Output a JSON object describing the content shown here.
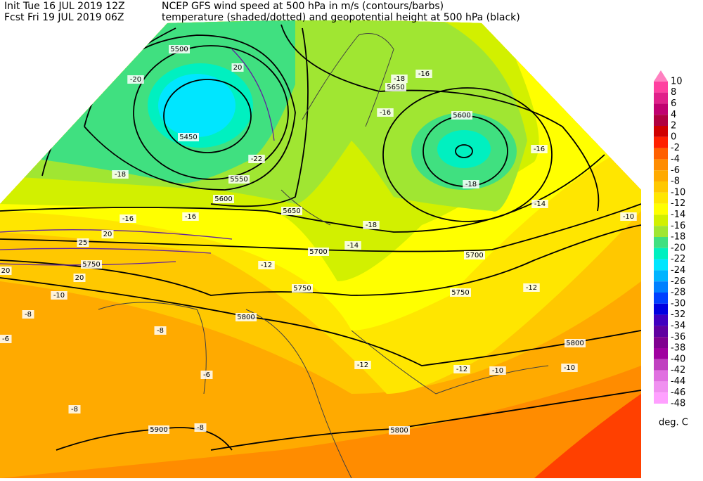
{
  "header": {
    "init": "Init  Tue 16 JUL 2019 12Z",
    "fcst": "Fcst Fri 19 JUL 2019 06Z",
    "title1": "NCEP GFS wind speed at 500 hPa in m/s (contours/barbs)",
    "title2": "temperature (shaded/dotted) and geopotential height at 500 hPa (black)"
  },
  "legend": {
    "levels": [
      10,
      8,
      6,
      4,
      2,
      0,
      -2,
      -4,
      -6,
      -8,
      -10,
      -12,
      -14,
      -16,
      -18,
      -20,
      -22,
      -24,
      -26,
      -28,
      -30,
      -32,
      -34,
      -36,
      -38,
      -40,
      -42,
      -44,
      -46,
      -48
    ],
    "colors": [
      "#ff80c0",
      "#ff40a0",
      "#e0208a",
      "#c00070",
      "#b00040",
      "#d00000",
      "#ff2000",
      "#ff6000",
      "#ff8c00",
      "#ffaa00",
      "#ffc800",
      "#ffe600",
      "#ffff00",
      "#d2f000",
      "#a0e632",
      "#40e080",
      "#00f0c0",
      "#00e6ff",
      "#00b4ff",
      "#0080ff",
      "#0040ff",
      "#0000e0",
      "#4000c0",
      "#6000a0",
      "#800090",
      "#a000a0",
      "#c040c0",
      "#e070e0",
      "#f090f0",
      "#ffa0ff"
    ],
    "unit": "deg. C"
  },
  "map_labels": [
    "5500",
    "5450",
    "5550",
    "5600",
    "5650",
    "5700",
    "5750",
    "5750",
    "5800",
    "5800",
    "5800",
    "5900",
    "5650",
    "5600",
    "5700",
    "5750",
    "-20",
    "-18",
    "-16",
    "-18",
    "-16",
    "-18",
    "-16",
    "-16",
    "-14",
    "-12",
    "-10",
    "-10",
    "-8",
    "-6",
    "-8",
    "-6",
    "-8",
    "-8",
    "-12",
    "-12",
    "-10",
    "-12",
    "-14",
    "-16",
    "-22",
    "-18",
    "-10",
    "20",
    "20",
    "25",
    "20",
    "20"
  ]
}
